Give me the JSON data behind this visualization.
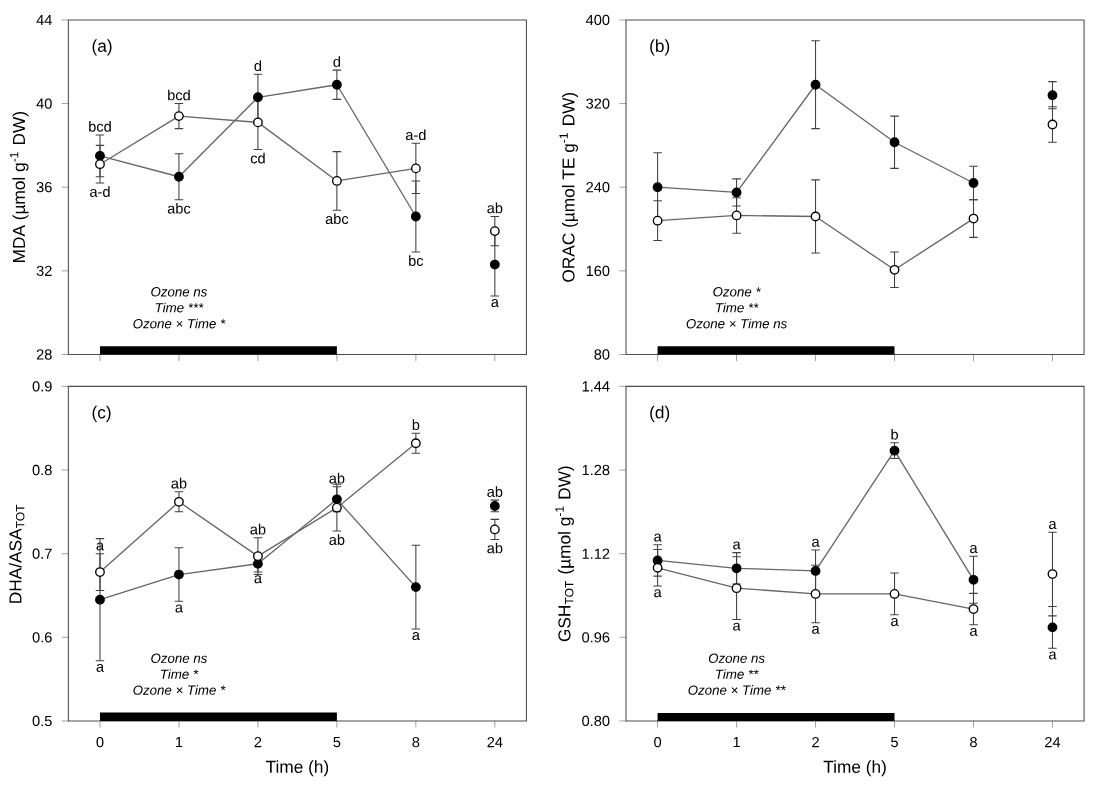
{
  "chart_data": [
    {
      "type": "line",
      "title": "(a)",
      "ylabel": "MDA (µmol g$^{-1}$ DW)",
      "categories": [
        "0",
        "1",
        "2",
        "5",
        "8",
        "24"
      ],
      "ylim": [
        28,
        44
      ],
      "yticks": [
        28,
        32,
        36,
        40,
        44
      ],
      "tick_labels": "y",
      "marker": "circle",
      "series": [
        {
          "color": "#000000",
          "values": [
            37.5,
            36.5,
            40.3,
            40.9,
            34.6,
            null
          ],
          "errors": [
            1.0,
            1.1,
            1.1,
            0.7,
            1.7,
            null
          ]
        },
        {
          "color": "#ffffff",
          "values": [
            37.1,
            39.4,
            39.1,
            36.3,
            36.9,
            null
          ],
          "errors": [
            0.9,
            0.6,
            1.3,
            1.4,
            1.2,
            null
          ]
        },
        {
          "type": "scatter",
          "color": "#000000",
          "values": [
            null,
            null,
            null,
            null,
            null,
            32.3
          ],
          "errors": [
            null,
            null,
            null,
            null,
            null,
            1.5
          ]
        },
        {
          "type": "scatter",
          "color": "#ffffff",
          "values": [
            null,
            null,
            null,
            null,
            null,
            33.9
          ],
          "errors": [
            null,
            null,
            null,
            null,
            null,
            0.7
          ]
        },
        {
          "type": "area",
          "marker": "none",
          "color": "#000000",
          "values": [
            28.4,
            28.4,
            28.4,
            28.4,
            null,
            null
          ]
        }
      ],
      "annotations": [
        "*Ozone* ns",
        "*Time* ***",
        "*Ozone* × *Time* *",
        {
          "text": "bcd",
          "x": "0",
          "y": 38.5
        },
        {
          "text": "a-d",
          "x": "0",
          "y": 36.2
        },
        {
          "text": "bcd",
          "x": "1",
          "y": 40.0
        },
        {
          "text": "abc",
          "x": "1",
          "y": 35.4
        },
        {
          "text": "d",
          "x": "2",
          "y": 41.4
        },
        {
          "text": "cd",
          "x": "2",
          "y": 37.8
        },
        {
          "text": "d",
          "x": "5",
          "y": 41.6
        },
        {
          "text": "abc",
          "x": "5",
          "y": 34.9
        },
        {
          "text": "a-d",
          "x": "8",
          "y": 38.1
        },
        {
          "text": "bc",
          "x": "8",
          "y": 32.9
        },
        {
          "text": "ab",
          "x": "24",
          "y": 34.6
        },
        {
          "text": "a",
          "x": "24",
          "y": 30.8
        }
      ]
    },
    {
      "type": "line",
      "title": "(b)",
      "ylabel": "ORAC (µmol TE g$^{-1}$ DW)",
      "categories": [
        "0",
        "1",
        "2",
        "5",
        "8",
        "24"
      ],
      "ylim": [
        80,
        400
      ],
      "yticks": [
        80,
        160,
        240,
        320,
        400
      ],
      "tick_labels": "y",
      "marker": "circle",
      "series": [
        {
          "color": "#000000",
          "values": [
            240,
            235,
            338,
            283,
            244,
            null
          ],
          "errors": [
            33,
            13,
            42,
            25,
            16,
            null
          ]
        },
        {
          "color": "#ffffff",
          "values": [
            208,
            213,
            212,
            161,
            210,
            null
          ],
          "errors": [
            19,
            17,
            35,
            17,
            18,
            null
          ]
        },
        {
          "type": "scatter",
          "color": "#000000",
          "values": [
            null,
            null,
            null,
            null,
            null,
            328
          ],
          "errors": [
            null,
            null,
            null,
            null,
            null,
            13
          ]
        },
        {
          "type": "scatter",
          "color": "#ffffff",
          "values": [
            null,
            null,
            null,
            null,
            null,
            300
          ],
          "errors": [
            null,
            null,
            null,
            null,
            null,
            17
          ]
        },
        {
          "type": "area",
          "marker": "none",
          "color": "#000000",
          "values": [
            88,
            88,
            88,
            88,
            null,
            null
          ]
        }
      ],
      "annotations": [
        "*Ozone* *",
        "*Time* **",
        "*Ozone* × *Time* ns"
      ]
    },
    {
      "type": "line",
      "title": "(c)",
      "xlabel": "Time (h)",
      "ylabel": "DHA/ASA$_{TOT}$",
      "categories": [
        "0",
        "1",
        "2",
        "5",
        "8",
        "24"
      ],
      "ylim": [
        0.5,
        0.9
      ],
      "yticks": [
        0.5,
        0.6,
        0.7,
        0.8,
        0.9
      ],
      "marker": "circle",
      "series": [
        {
          "color": "#000000",
          "values": [
            0.645,
            0.675,
            0.688,
            0.765,
            0.66,
            null
          ],
          "errors": [
            0.073,
            0.032,
            0.01,
            0.015,
            0.05,
            null
          ]
        },
        {
          "color": "#ffffff",
          "values": [
            0.678,
            0.762,
            0.697,
            0.755,
            0.832,
            null
          ],
          "errors": [
            0.022,
            0.012,
            0.022,
            0.028,
            0.012,
            null
          ]
        },
        {
          "type": "scatter",
          "color": "#000000",
          "values": [
            null,
            null,
            null,
            null,
            null,
            0.757
          ],
          "errors": [
            null,
            null,
            null,
            null,
            null,
            0.007
          ]
        },
        {
          "type": "scatter",
          "color": "#ffffff",
          "values": [
            null,
            null,
            null,
            null,
            null,
            0.729
          ],
          "errors": [
            null,
            null,
            null,
            null,
            null,
            0.012
          ]
        },
        {
          "type": "area",
          "marker": "none",
          "color": "#000000",
          "values": [
            0.51,
            0.51,
            0.51,
            0.51,
            null,
            null
          ]
        }
      ],
      "annotations": [
        "*Ozone* ns",
        "*Time* *",
        "*Ozone* × *Time* *",
        {
          "text": "a",
          "x": "0",
          "y": 0.7
        },
        {
          "text": "a",
          "x": "0",
          "y": 0.572
        },
        {
          "text": "ab",
          "x": "1",
          "y": 0.774
        },
        {
          "text": "a",
          "x": "1",
          "y": 0.643
        },
        {
          "text": "ab",
          "x": "2",
          "y": 0.719
        },
        {
          "text": "a",
          "x": "2",
          "y": 0.678
        },
        {
          "text": "ab",
          "x": "5",
          "y": 0.78
        },
        {
          "text": "ab",
          "x": "5",
          "y": 0.727
        },
        {
          "text": "b",
          "x": "8",
          "y": 0.844
        },
        {
          "text": "a",
          "x": "8",
          "y": 0.61
        },
        {
          "text": "ab",
          "x": "24",
          "y": 0.764
        },
        {
          "text": "ab",
          "x": "24",
          "y": 0.717
        }
      ]
    },
    {
      "type": "line",
      "title": "(d)",
      "xlabel": "Time (h)",
      "ylabel": "GSH$_{TOT}$ (µmol g$^{-1}$ DW)",
      "categories": [
        "0",
        "1",
        "2",
        "5",
        "8",
        "24"
      ],
      "ylim": [
        0.8,
        1.44
      ],
      "yticks": [
        {
          "value": 0.8,
          "label": "0.80"
        },
        {
          "value": 0.96,
          "label": "0.96"
        },
        {
          "value": 1.12,
          "label": "1.12"
        },
        {
          "value": 1.28,
          "label": "1.28"
        },
        {
          "value": 1.44,
          "label": "1.44"
        }
      ],
      "marker": "circle",
      "series": [
        {
          "color": "#000000",
          "values": [
            1.107,
            1.092,
            1.087,
            1.317,
            1.07,
            null
          ],
          "errors": [
            0.03,
            0.03,
            0.04,
            0.015,
            0.045,
            null
          ]
        },
        {
          "color": "#ffffff",
          "values": [
            1.093,
            1.054,
            1.043,
            1.043,
            1.014,
            null
          ],
          "errors": [
            0.035,
            0.06,
            0.055,
            0.04,
            0.03,
            null
          ]
        },
        {
          "type": "scatter",
          "color": "#000000",
          "values": [
            null,
            null,
            null,
            null,
            null,
            0.979
          ],
          "errors": [
            null,
            null,
            null,
            null,
            null,
            0.04
          ]
        },
        {
          "type": "scatter",
          "color": "#ffffff",
          "values": [
            null,
            null,
            null,
            null,
            null,
            1.081
          ],
          "errors": [
            null,
            null,
            null,
            null,
            null,
            0.08
          ]
        },
        {
          "type": "area",
          "marker": "none",
          "color": "#000000",
          "values": [
            0.815,
            0.815,
            0.815,
            0.815,
            null,
            null
          ]
        }
      ],
      "annotations": [
        "*Ozone* ns",
        "*Time* **",
        "*Ozone* × *Time* **",
        {
          "text": "a",
          "x": "0",
          "y": 1.137
        },
        {
          "text": "a",
          "x": "0",
          "y": 1.058
        },
        {
          "text": "a",
          "x": "1",
          "y": 1.122
        },
        {
          "text": "a",
          "x": "1",
          "y": 0.994
        },
        {
          "text": "a",
          "x": "2",
          "y": 1.127
        },
        {
          "text": "a",
          "x": "2",
          "y": 0.988
        },
        {
          "text": "b",
          "x": "5",
          "y": 1.332
        },
        {
          "text": "a",
          "x": "5",
          "y": 1.003
        },
        {
          "text": "a",
          "x": "8",
          "y": 1.115
        },
        {
          "text": "a",
          "x": "8",
          "y": 0.984
        },
        {
          "text": "a",
          "x": "24",
          "y": 1.161
        },
        {
          "text": "a",
          "x": "24",
          "y": 0.939
        }
      ]
    }
  ]
}
